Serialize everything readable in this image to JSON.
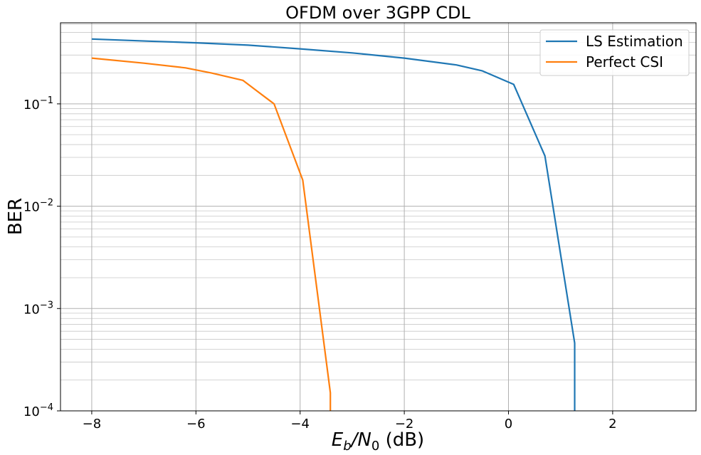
{
  "chart_data": {
    "type": "line",
    "title": "OFDM over 3GPP CDL",
    "xlabel": {
      "base": "E",
      "sub1": "b",
      "mid": "/N",
      "sub2": "0",
      "tail": " (dB)"
    },
    "ylabel": "BER",
    "xlim": [
      -8.6,
      3.6
    ],
    "ylim": [
      0.0001,
      0.62
    ],
    "yscale": "log",
    "grid": "on (major and minor)",
    "legend_position": "top-right",
    "x_ticks": [
      {
        "value": -8,
        "label": "−8"
      },
      {
        "value": -6,
        "label": "−6"
      },
      {
        "value": -4,
        "label": "−4"
      },
      {
        "value": -2,
        "label": "−2"
      },
      {
        "value": 0,
        "label": "0"
      },
      {
        "value": 2,
        "label": "2"
      }
    ],
    "y_ticks": [
      {
        "value": 0.1,
        "base": "10",
        "exp": "−1"
      },
      {
        "value": 0.01,
        "base": "10",
        "exp": "−2"
      },
      {
        "value": 0.001,
        "base": "10",
        "exp": "−3"
      },
      {
        "value": 0.0001,
        "base": "10",
        "exp": "−4"
      }
    ],
    "series": [
      {
        "name": "LS Estimation",
        "color": "#1f77b4",
        "x": [
          -8.0,
          -6.9,
          -6.0,
          -5.0,
          -4.0,
          -3.0,
          -2.0,
          -1.0,
          -0.5,
          0.1,
          0.7,
          1.27,
          1.27
        ],
        "y": [
          0.43,
          0.41,
          0.395,
          0.375,
          0.345,
          0.315,
          0.28,
          0.24,
          0.21,
          0.155,
          0.031,
          0.00046,
          0.0001
        ]
      },
      {
        "name": "Perfect CSI",
        "color": "#ff7f0e",
        "x": [
          -8.0,
          -7.0,
          -6.2,
          -5.7,
          -5.1,
          -4.5,
          -3.95,
          -3.42,
          -3.42
        ],
        "y": [
          0.28,
          0.25,
          0.225,
          0.2,
          0.17,
          0.1,
          0.018,
          0.00015,
          0.0001
        ]
      }
    ]
  }
}
